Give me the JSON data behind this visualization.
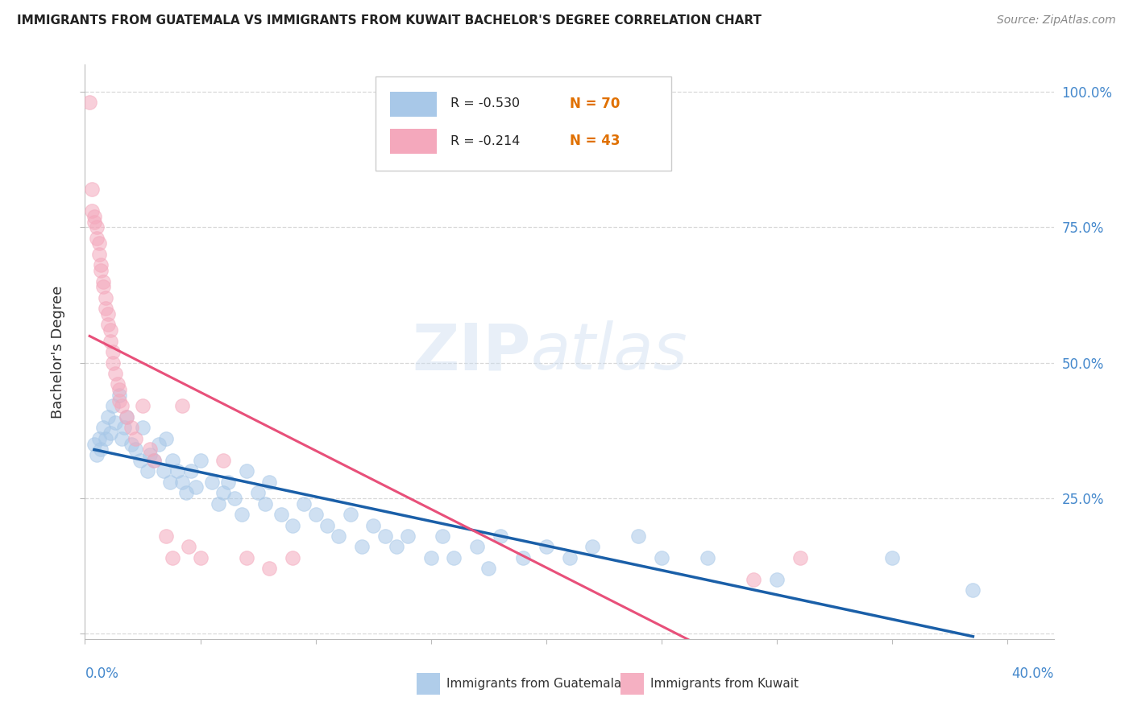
{
  "title": "IMMIGRANTS FROM GUATEMALA VS IMMIGRANTS FROM KUWAIT BACHELOR'S DEGREE CORRELATION CHART",
  "source": "Source: ZipAtlas.com",
  "ylabel": "Bachelor's Degree",
  "color_guatemala": "#a8c8e8",
  "color_kuwait": "#f4a8bc",
  "line_color_guatemala": "#1a5fa8",
  "line_color_kuwait": "#e8507a",
  "watermark_zip_color": "#c8ddf0",
  "watermark_atlas_color": "#c8ddf0",
  "guatemala_x": [
    0.004,
    0.005,
    0.006,
    0.007,
    0.008,
    0.009,
    0.01,
    0.011,
    0.012,
    0.013,
    0.015,
    0.016,
    0.017,
    0.018,
    0.02,
    0.022,
    0.024,
    0.025,
    0.027,
    0.028,
    0.03,
    0.032,
    0.034,
    0.035,
    0.037,
    0.038,
    0.04,
    0.042,
    0.044,
    0.046,
    0.048,
    0.05,
    0.055,
    0.058,
    0.06,
    0.062,
    0.065,
    0.068,
    0.07,
    0.075,
    0.078,
    0.08,
    0.085,
    0.09,
    0.095,
    0.1,
    0.105,
    0.11,
    0.115,
    0.12,
    0.125,
    0.13,
    0.135,
    0.14,
    0.15,
    0.155,
    0.16,
    0.17,
    0.175,
    0.18,
    0.19,
    0.2,
    0.21,
    0.22,
    0.24,
    0.25,
    0.27,
    0.3,
    0.35,
    0.385
  ],
  "guatemala_y": [
    0.35,
    0.33,
    0.36,
    0.34,
    0.38,
    0.36,
    0.4,
    0.37,
    0.42,
    0.39,
    0.44,
    0.36,
    0.38,
    0.4,
    0.35,
    0.34,
    0.32,
    0.38,
    0.3,
    0.33,
    0.32,
    0.35,
    0.3,
    0.36,
    0.28,
    0.32,
    0.3,
    0.28,
    0.26,
    0.3,
    0.27,
    0.32,
    0.28,
    0.24,
    0.26,
    0.28,
    0.25,
    0.22,
    0.3,
    0.26,
    0.24,
    0.28,
    0.22,
    0.2,
    0.24,
    0.22,
    0.2,
    0.18,
    0.22,
    0.16,
    0.2,
    0.18,
    0.16,
    0.18,
    0.14,
    0.18,
    0.14,
    0.16,
    0.12,
    0.18,
    0.14,
    0.16,
    0.14,
    0.16,
    0.18,
    0.14,
    0.14,
    0.1,
    0.14,
    0.08
  ],
  "kuwait_x": [
    0.002,
    0.003,
    0.003,
    0.004,
    0.004,
    0.005,
    0.005,
    0.006,
    0.006,
    0.007,
    0.007,
    0.008,
    0.008,
    0.009,
    0.009,
    0.01,
    0.01,
    0.011,
    0.011,
    0.012,
    0.012,
    0.013,
    0.014,
    0.015,
    0.015,
    0.016,
    0.018,
    0.02,
    0.022,
    0.025,
    0.028,
    0.03,
    0.035,
    0.038,
    0.042,
    0.045,
    0.05,
    0.06,
    0.07,
    0.08,
    0.09,
    0.29,
    0.31
  ],
  "kuwait_y": [
    0.98,
    0.82,
    0.78,
    0.77,
    0.76,
    0.75,
    0.73,
    0.72,
    0.7,
    0.68,
    0.67,
    0.65,
    0.64,
    0.62,
    0.6,
    0.59,
    0.57,
    0.56,
    0.54,
    0.52,
    0.5,
    0.48,
    0.46,
    0.45,
    0.43,
    0.42,
    0.4,
    0.38,
    0.36,
    0.42,
    0.34,
    0.32,
    0.18,
    0.14,
    0.42,
    0.16,
    0.14,
    0.32,
    0.14,
    0.12,
    0.14,
    0.1,
    0.14
  ],
  "xlim": [
    0.0,
    0.42
  ],
  "ylim": [
    -0.01,
    1.05
  ],
  "ytick_positions": [
    0.0,
    0.25,
    0.5,
    0.75,
    1.0
  ],
  "right_ytick_labels": [
    "100.0%",
    "75.0%",
    "50.0%",
    "25.0%"
  ],
  "right_ytick_vals": [
    1.0,
    0.75,
    0.5,
    0.25
  ],
  "background_color": "#ffffff",
  "grid_color": "#d8d8d8"
}
